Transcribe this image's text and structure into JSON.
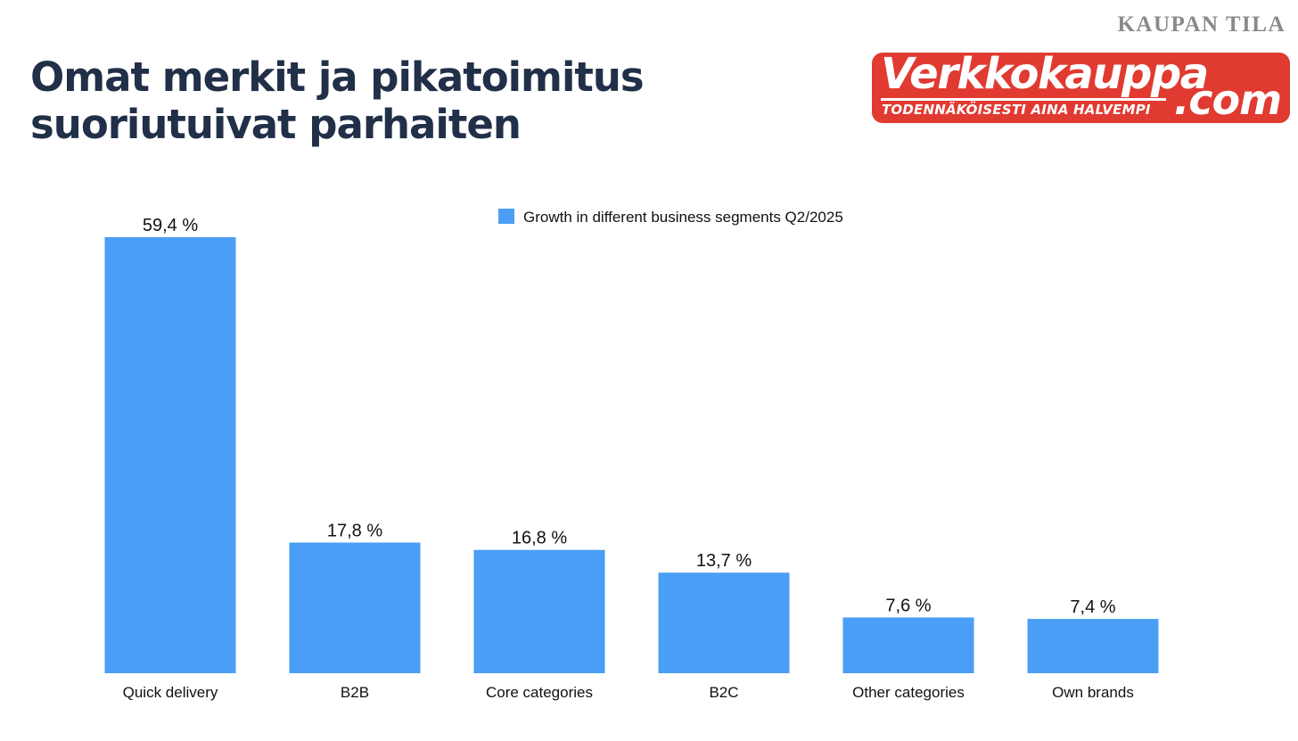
{
  "header": {
    "corner_tag": "KAUPAN TILA",
    "title_line1": "Omat merkit ja pikatoimitus",
    "title_line2": "suoriutuivat parhaiten"
  },
  "logo": {
    "name": "Verkkokauppa",
    "dotcom": ".com",
    "tagline": "TODENNÄKÖISESTI AINA HALVEMPI",
    "color": "#e03a31"
  },
  "chart_data": {
    "type": "bar",
    "title": "",
    "legend": "Growth in different business segments Q2/2025",
    "legend_position": "top-center",
    "categories": [
      "Quick delivery",
      "B2B",
      "Core categories",
      "B2C",
      "Other categories",
      "Own brands"
    ],
    "values": [
      59.4,
      17.8,
      16.8,
      13.7,
      7.6,
      7.4
    ],
    "value_labels": [
      "59,4 %",
      "17,8 %",
      "16,8 %",
      "13,7 %",
      "7,6 %",
      "7,4 %"
    ],
    "xlabel": "",
    "ylabel": "",
    "ylim": [
      0,
      59.4
    ],
    "grid": false,
    "bar_color": "#4a9ef5"
  }
}
